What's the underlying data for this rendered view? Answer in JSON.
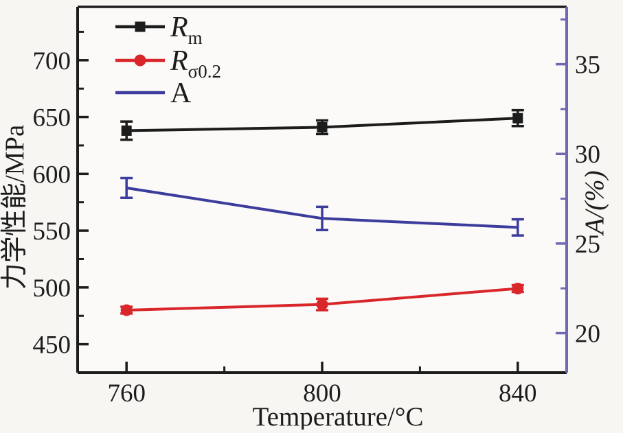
{
  "figure": {
    "background": "#f7f6f3",
    "plot_background": "#fbfaf8"
  },
  "chart_data": {
    "type": "line",
    "x": [
      760,
      800,
      840
    ],
    "xlabel": "Temperature/°C",
    "ylabel_left": "力学性能/MPa",
    "ylabel_right": "A/(%)",
    "xlim": [
      750,
      850
    ],
    "x_major_ticks": [
      760,
      800,
      840
    ],
    "x_minor_ticks": [
      780,
      820
    ],
    "ylim_left": [
      425,
      747
    ],
    "y_left_major_ticks": [
      450,
      500,
      550,
      600,
      650,
      700
    ],
    "y_left_minor_ticks": [
      475,
      525,
      575,
      625,
      675,
      725
    ],
    "ylim_right": [
      17.8,
      38.2
    ],
    "y_right_major_ticks": [
      20,
      25,
      30,
      35
    ],
    "y_right_minor_ticks": [
      22.5,
      27.5,
      32.5,
      37.5
    ],
    "grid": false,
    "legend_position": "upper-left-inside",
    "left_axis_color": "#1c1c1c",
    "right_axis_color": "#6f68b2",
    "series": [
      {
        "name": "Rm",
        "legend_main": "R",
        "legend_sub": "m",
        "legend_italic": true,
        "axis": "left",
        "color": "#1c1c1c",
        "marker": "square",
        "values": [
          638,
          641,
          649
        ],
        "errors": [
          8,
          6,
          7
        ]
      },
      {
        "name": "Rσ0.2",
        "legend_main": "R",
        "legend_sub": "σ0.2",
        "legend_italic": true,
        "axis": "left",
        "color": "#d8262b",
        "marker": "circle",
        "values": [
          480,
          485,
          499
        ],
        "errors": [
          3,
          5,
          3
        ]
      },
      {
        "name": "A",
        "legend_main": "A",
        "legend_sub": "",
        "legend_italic": false,
        "axis": "right",
        "color": "#3c3c9c",
        "marker": "none",
        "values": [
          28.1,
          26.4,
          25.9
        ],
        "errors": [
          0.55,
          0.65,
          0.45
        ]
      }
    ]
  }
}
